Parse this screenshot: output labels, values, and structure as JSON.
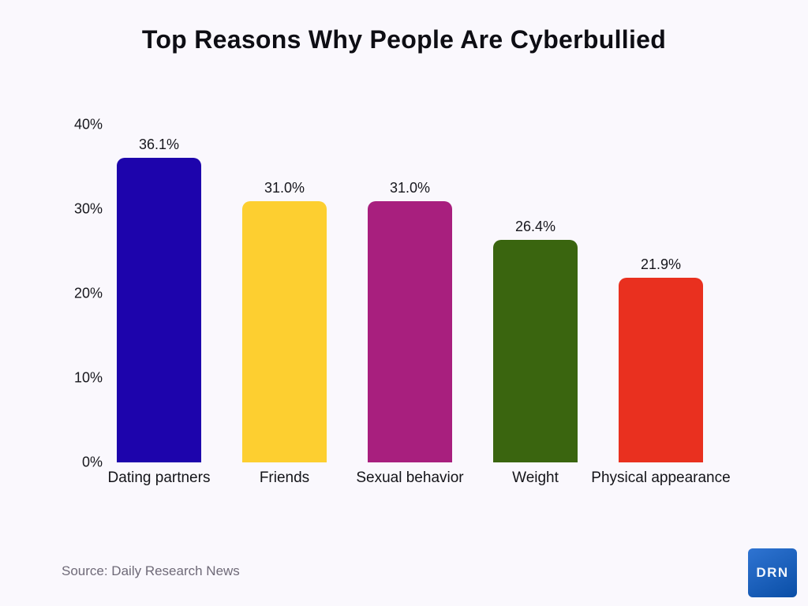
{
  "page": {
    "background_color": "#FAF8FD"
  },
  "title": "Top Reasons Why People Are Cyberbullied",
  "source": {
    "label": "Source: Daily Research News",
    "text_color": "#6F6A78"
  },
  "logo": {
    "text": "DRN",
    "color_top": "#2F74D2",
    "color_bottom": "#0A4EA6"
  },
  "chart_data": {
    "type": "bar",
    "title": "Top Reasons Why People Are Cyberbullied",
    "categories": [
      "Dating partners",
      "Friends",
      "Sexual behavior",
      "Weight",
      "Physical appearance"
    ],
    "values": [
      36.1,
      31.0,
      31.0,
      26.4,
      21.9
    ],
    "value_labels": [
      "36.1%",
      "31.0%",
      "31.0%",
      "26.4%",
      "21.9%"
    ],
    "bar_colors": [
      "#1D04AC",
      "#FDCF30",
      "#A81F7E",
      "#3A650F",
      "#E9301F"
    ],
    "xlabel": "",
    "ylabel": "",
    "ylim": [
      0,
      40
    ],
    "yticks": [
      {
        "value": 0,
        "label": "0%"
      },
      {
        "value": 10,
        "label": "10%"
      },
      {
        "value": 20,
        "label": "20%"
      },
      {
        "value": 30,
        "label": "30%"
      },
      {
        "value": 40,
        "label": "40%"
      }
    ],
    "grid": false,
    "legend": false
  }
}
